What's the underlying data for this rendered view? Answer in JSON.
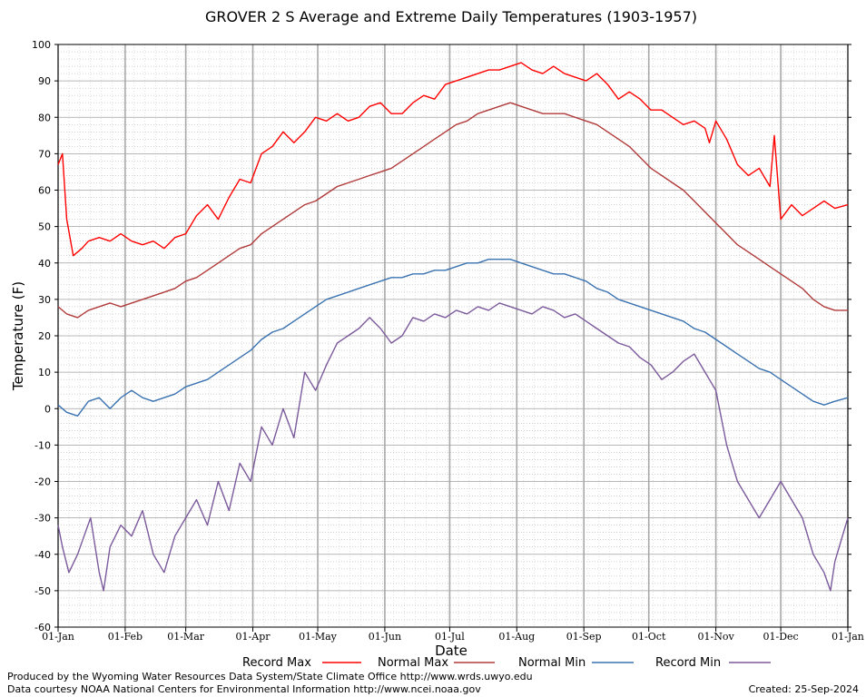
{
  "chart_data": {
    "type": "line",
    "title": "GROVER 2 S Average and Extreme Daily Temperatures (1903-1957)",
    "xlabel": "Date",
    "ylabel": "Temperature (F)",
    "ylim": [
      -60,
      100
    ],
    "yticks": [
      "100",
      "90",
      "80",
      "70",
      "60",
      "50",
      "40",
      "30",
      "20",
      "10",
      "0",
      "-10",
      "-20",
      "-30",
      "-40",
      "-50",
      "-60"
    ],
    "xticks": [
      "01-Jan",
      "01-Feb",
      "01-Mar",
      "01-Apr",
      "01-May",
      "01-Jun",
      "01-Jul",
      "01-Aug",
      "01-Sep",
      "01-Oct",
      "01-Nov",
      "01-Dec",
      "01-Jan"
    ],
    "xtick_days": [
      1,
      32,
      60,
      91,
      121,
      152,
      182,
      213,
      244,
      274,
      305,
      335,
      366
    ],
    "x_unit": "day of year",
    "grid": true,
    "legend_position": "bottom",
    "series": [
      {
        "name": "Record Max",
        "color": "#ff0000",
        "x": [
          1,
          3,
          5,
          8,
          12,
          15,
          20,
          25,
          30,
          35,
          40,
          45,
          50,
          55,
          60,
          65,
          70,
          75,
          80,
          85,
          90,
          95,
          100,
          105,
          110,
          115,
          120,
          125,
          130,
          135,
          140,
          145,
          150,
          155,
          160,
          165,
          170,
          175,
          180,
          185,
          190,
          195,
          200,
          205,
          210,
          215,
          220,
          225,
          230,
          235,
          240,
          245,
          250,
          255,
          260,
          265,
          270,
          275,
          280,
          285,
          290,
          295,
          300,
          302,
          305,
          310,
          315,
          320,
          325,
          330,
          332,
          335,
          340,
          345,
          350,
          355,
          360,
          366
        ],
        "values": [
          67,
          70,
          52,
          42,
          44,
          46,
          47,
          46,
          48,
          46,
          45,
          46,
          44,
          47,
          48,
          53,
          56,
          52,
          58,
          63,
          62,
          70,
          72,
          76,
          73,
          76,
          80,
          79,
          81,
          79,
          80,
          83,
          84,
          81,
          81,
          84,
          86,
          85,
          89,
          90,
          91,
          92,
          93,
          93,
          94,
          95,
          93,
          92,
          94,
          92,
          91,
          90,
          92,
          89,
          85,
          87,
          85,
          82,
          82,
          80,
          78,
          79,
          77,
          73,
          79,
          74,
          67,
          64,
          66,
          61,
          75,
          52,
          56,
          53,
          55,
          57,
          55,
          56
        ]
      },
      {
        "name": "Normal Max",
        "color": "#b03a3a",
        "x": [
          1,
          5,
          10,
          15,
          20,
          25,
          30,
          35,
          40,
          45,
          50,
          55,
          60,
          65,
          70,
          75,
          80,
          85,
          90,
          95,
          100,
          105,
          110,
          115,
          120,
          125,
          130,
          135,
          140,
          145,
          150,
          155,
          160,
          165,
          170,
          175,
          180,
          185,
          190,
          195,
          200,
          205,
          210,
          215,
          220,
          225,
          230,
          235,
          240,
          245,
          250,
          255,
          260,
          265,
          270,
          275,
          280,
          285,
          290,
          295,
          300,
          305,
          310,
          315,
          320,
          325,
          330,
          335,
          340,
          345,
          350,
          355,
          360,
          366
        ],
        "values": [
          28,
          26,
          25,
          27,
          28,
          29,
          28,
          29,
          30,
          31,
          32,
          33,
          35,
          36,
          38,
          40,
          42,
          44,
          45,
          48,
          50,
          52,
          54,
          56,
          57,
          59,
          61,
          62,
          63,
          64,
          65,
          66,
          68,
          70,
          72,
          74,
          76,
          78,
          79,
          81,
          82,
          83,
          84,
          83,
          82,
          81,
          81,
          81,
          80,
          79,
          78,
          76,
          74,
          72,
          69,
          66,
          64,
          62,
          60,
          57,
          54,
          51,
          48,
          45,
          43,
          41,
          39,
          37,
          35,
          33,
          30,
          28,
          27,
          27
        ]
      },
      {
        "name": "Normal Min",
        "color": "#3a72b0",
        "x": [
          1,
          5,
          10,
          15,
          20,
          25,
          30,
          35,
          40,
          45,
          50,
          55,
          60,
          65,
          70,
          75,
          80,
          85,
          90,
          95,
          100,
          105,
          110,
          115,
          120,
          125,
          130,
          135,
          140,
          145,
          150,
          155,
          160,
          165,
          170,
          175,
          180,
          185,
          190,
          195,
          200,
          205,
          210,
          215,
          220,
          225,
          230,
          235,
          240,
          245,
          250,
          255,
          260,
          265,
          270,
          275,
          280,
          285,
          290,
          295,
          300,
          305,
          310,
          315,
          320,
          325,
          330,
          335,
          340,
          345,
          350,
          355,
          360,
          366
        ],
        "values": [
          1,
          -1,
          -2,
          2,
          3,
          0,
          3,
          5,
          3,
          2,
          3,
          4,
          6,
          7,
          8,
          10,
          12,
          14,
          16,
          19,
          21,
          22,
          24,
          26,
          28,
          30,
          31,
          32,
          33,
          34,
          35,
          36,
          36,
          37,
          37,
          38,
          38,
          39,
          40,
          40,
          41,
          41,
          41,
          40,
          39,
          38,
          37,
          37,
          36,
          35,
          33,
          32,
          30,
          29,
          28,
          27,
          26,
          25,
          24,
          22,
          21,
          19,
          17,
          15,
          13,
          11,
          10,
          8,
          6,
          4,
          2,
          1,
          2,
          3
        ]
      },
      {
        "name": "Record Min",
        "color": "#7b5a9b",
        "x": [
          1,
          3,
          6,
          10,
          13,
          16,
          20,
          22,
          25,
          30,
          35,
          40,
          45,
          50,
          55,
          60,
          65,
          70,
          75,
          80,
          85,
          90,
          95,
          100,
          105,
          110,
          115,
          120,
          125,
          130,
          135,
          140,
          145,
          150,
          155,
          160,
          165,
          170,
          175,
          180,
          185,
          190,
          195,
          200,
          205,
          210,
          215,
          220,
          225,
          230,
          235,
          240,
          245,
          250,
          255,
          260,
          265,
          270,
          275,
          280,
          285,
          290,
          295,
          300,
          305,
          310,
          315,
          320,
          325,
          330,
          335,
          340,
          345,
          350,
          355,
          358,
          360,
          366
        ],
        "values": [
          -32,
          -38,
          -45,
          -40,
          -35,
          -30,
          -45,
          -50,
          -38,
          -32,
          -35,
          -28,
          -40,
          -45,
          -35,
          -30,
          -25,
          -32,
          -20,
          -28,
          -15,
          -20,
          -5,
          -10,
          0,
          -8,
          10,
          5,
          12,
          18,
          20,
          22,
          25,
          22,
          18,
          20,
          25,
          24,
          26,
          25,
          27,
          26,
          28,
          27,
          29,
          28,
          27,
          26,
          28,
          27,
          25,
          26,
          24,
          22,
          20,
          18,
          17,
          14,
          12,
          8,
          10,
          13,
          15,
          10,
          5,
          -10,
          -20,
          -25,
          -30,
          -25,
          -20,
          -25,
          -30,
          -40,
          -45,
          -50,
          -42,
          -30
        ]
      }
    ]
  },
  "footer": {
    "produced_by": "Produced by the Wyoming Water Resources Data System/State Climate Office http://www.wrds.uwyo.edu",
    "courtesy": "Data courtesy NOAA National Centers for Environmental Information http://www.ncei.noaa.gov",
    "created": "Created:  25-Sep-2024"
  }
}
